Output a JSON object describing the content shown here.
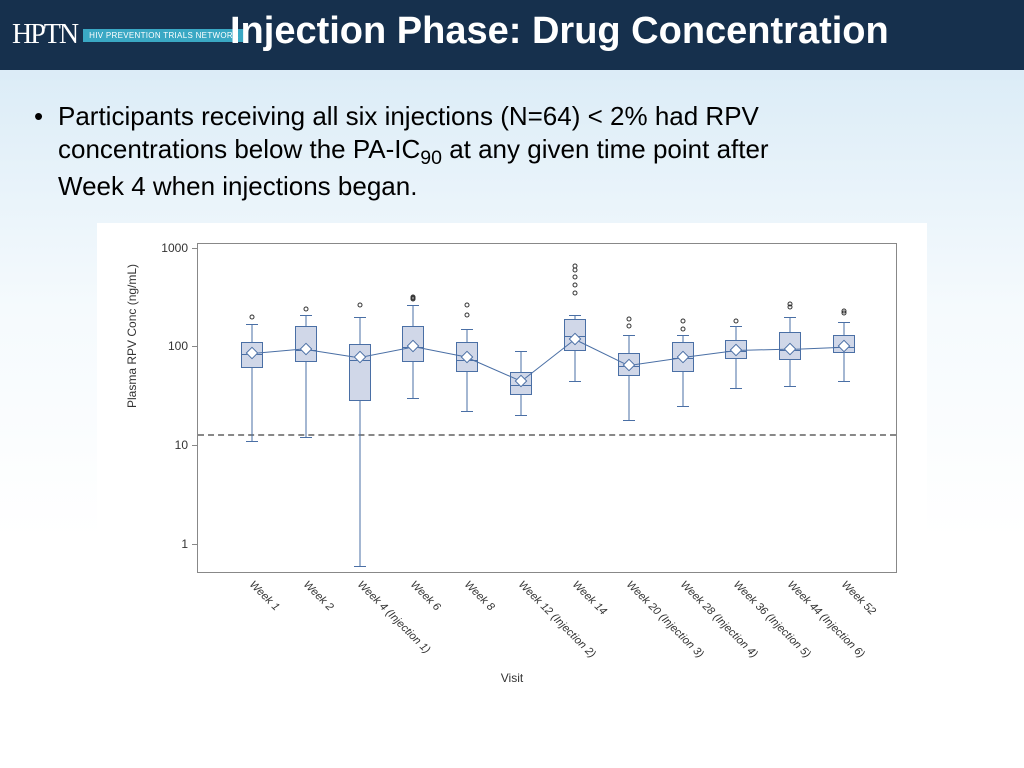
{
  "header": {
    "logo_mark": "HPTN",
    "logo_subtitle": "HIV PREVENTION TRIALS NETWORK",
    "title": "Injection Phase: Drug Concentration"
  },
  "bullet": {
    "pre": "Participants receiving all six injections (N=64) < 2% had RPV concentrations below the PA-IC",
    "sub": "90",
    "post": " at any given time point after Week 4 when injections began."
  },
  "chart": {
    "type": "boxplot",
    "ylabel": "Plasma RPV Conc (ng/mL)",
    "xlabel": "Visit",
    "y_scale": "log",
    "ylim": [
      0.5,
      1100
    ],
    "yticks": [
      1,
      10,
      100,
      1000
    ],
    "reference_line": 13,
    "box_fill": "#d0d7e8",
    "box_border": "#4a6fa5",
    "mean_line_color": "#4a6fa5",
    "background": "#ffffff",
    "frame_color": "#888888",
    "refline_color": "#888888",
    "categories": [
      "Week 1",
      "Week 2",
      "Week 4 (Injection 1)",
      "Week 6",
      "Week 8",
      "Week 12 (Injection 2)",
      "Week 14",
      "Week 20 (Injection 3)",
      "Week 28 (Injection 4)",
      "Week 36 (Injection 5)",
      "Week 44 (Injection 6)",
      "Week 52"
    ],
    "boxes": [
      {
        "low": 11,
        "q1": 60,
        "med": 85,
        "q3": 110,
        "high": 170,
        "mean": 85,
        "outliers": [
          200
        ]
      },
      {
        "low": 12,
        "q1": 70,
        "med": 95,
        "q3": 160,
        "high": 210,
        "mean": 95,
        "outliers": [
          240
        ]
      },
      {
        "low": 0.6,
        "q1": 28,
        "med": 75,
        "q3": 105,
        "high": 200,
        "mean": 78,
        "outliers": [
          260
        ]
      },
      {
        "low": 30,
        "q1": 70,
        "med": 100,
        "q3": 160,
        "high": 260,
        "mean": 100,
        "outliers": [
          300,
          320,
          310
        ]
      },
      {
        "low": 22,
        "q1": 55,
        "med": 75,
        "q3": 110,
        "high": 150,
        "mean": 78,
        "outliers": [
          210,
          260
        ]
      },
      {
        "low": 20,
        "q1": 32,
        "med": 42,
        "q3": 55,
        "high": 90,
        "mean": 45,
        "outliers": []
      },
      {
        "low": 45,
        "q1": 90,
        "med": 130,
        "q3": 190,
        "high": 210,
        "mean": 120,
        "outliers": [
          350,
          420,
          500,
          600,
          650
        ]
      },
      {
        "low": 18,
        "q1": 50,
        "med": 65,
        "q3": 85,
        "high": 130,
        "mean": 65,
        "outliers": [
          160,
          190
        ]
      },
      {
        "low": 25,
        "q1": 55,
        "med": 78,
        "q3": 110,
        "high": 130,
        "mean": 78,
        "outliers": [
          150,
          180
        ]
      },
      {
        "low": 38,
        "q1": 75,
        "med": 92,
        "q3": 115,
        "high": 160,
        "mean": 92,
        "outliers": [
          180
        ]
      },
      {
        "low": 40,
        "q1": 72,
        "med": 95,
        "q3": 140,
        "high": 200,
        "mean": 95,
        "outliers": [
          250,
          270
        ]
      },
      {
        "low": 45,
        "q1": 85,
        "med": 100,
        "q3": 130,
        "high": 175,
        "mean": 100,
        "outliers": [
          220,
          230
        ]
      }
    ]
  }
}
